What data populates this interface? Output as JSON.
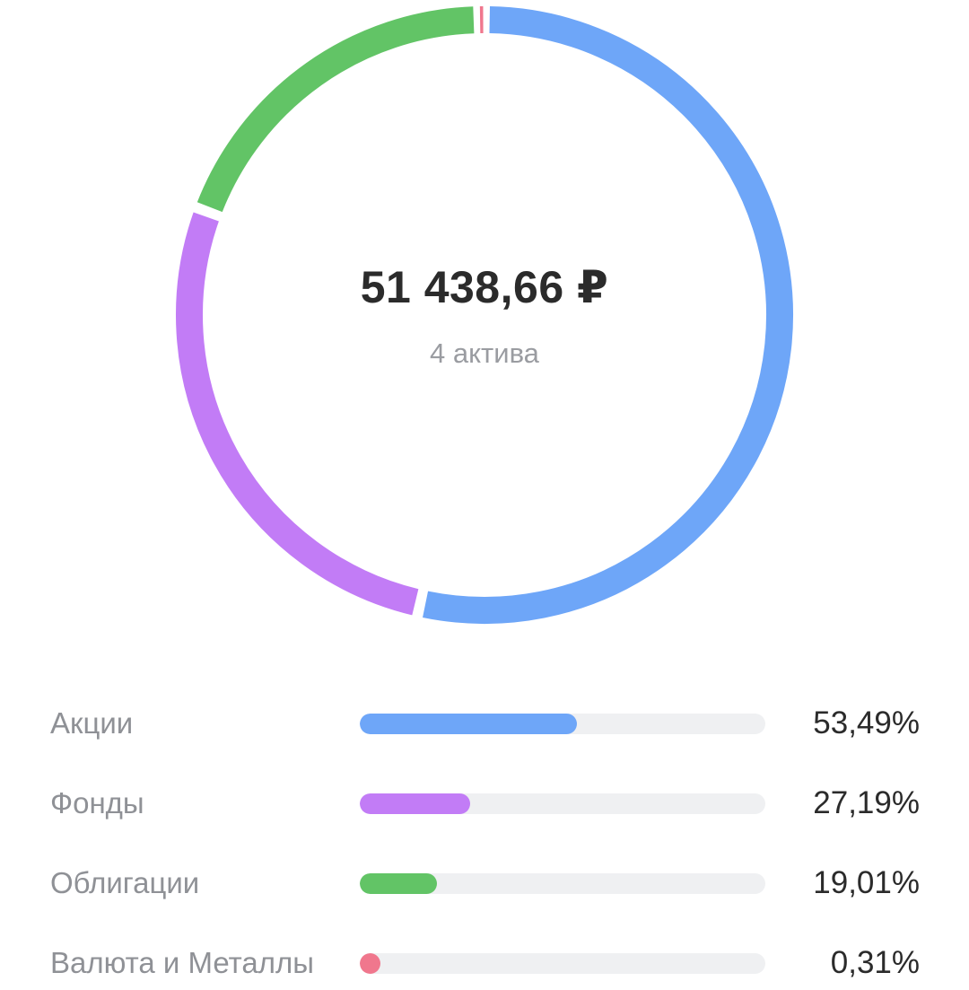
{
  "summary": {
    "total": "51 438,66 ₽",
    "assets_count": "4 актива"
  },
  "chart_data": {
    "type": "pie",
    "categories": [
      "Акции",
      "Фонды",
      "Облигации",
      "Валюта и Металлы"
    ],
    "values": [
      53.49,
      27.19,
      19.01,
      0.31
    ],
    "colors": [
      "#6ea6f8",
      "#c27cf6",
      "#62c466",
      "#f0778d"
    ]
  },
  "legend": [
    {
      "label": "Акции",
      "percent": "53,49%",
      "value": 53.49,
      "color": "#6ea6f8"
    },
    {
      "label": "Фонды",
      "percent": "27,19%",
      "value": 27.19,
      "color": "#c27cf6"
    },
    {
      "label": "Облигации",
      "percent": "19,01%",
      "value": 19.01,
      "color": "#62c466"
    },
    {
      "label": "Валюта и Металлы",
      "percent": "0,31%",
      "value": 0.31,
      "color": "#f0778d"
    }
  ]
}
